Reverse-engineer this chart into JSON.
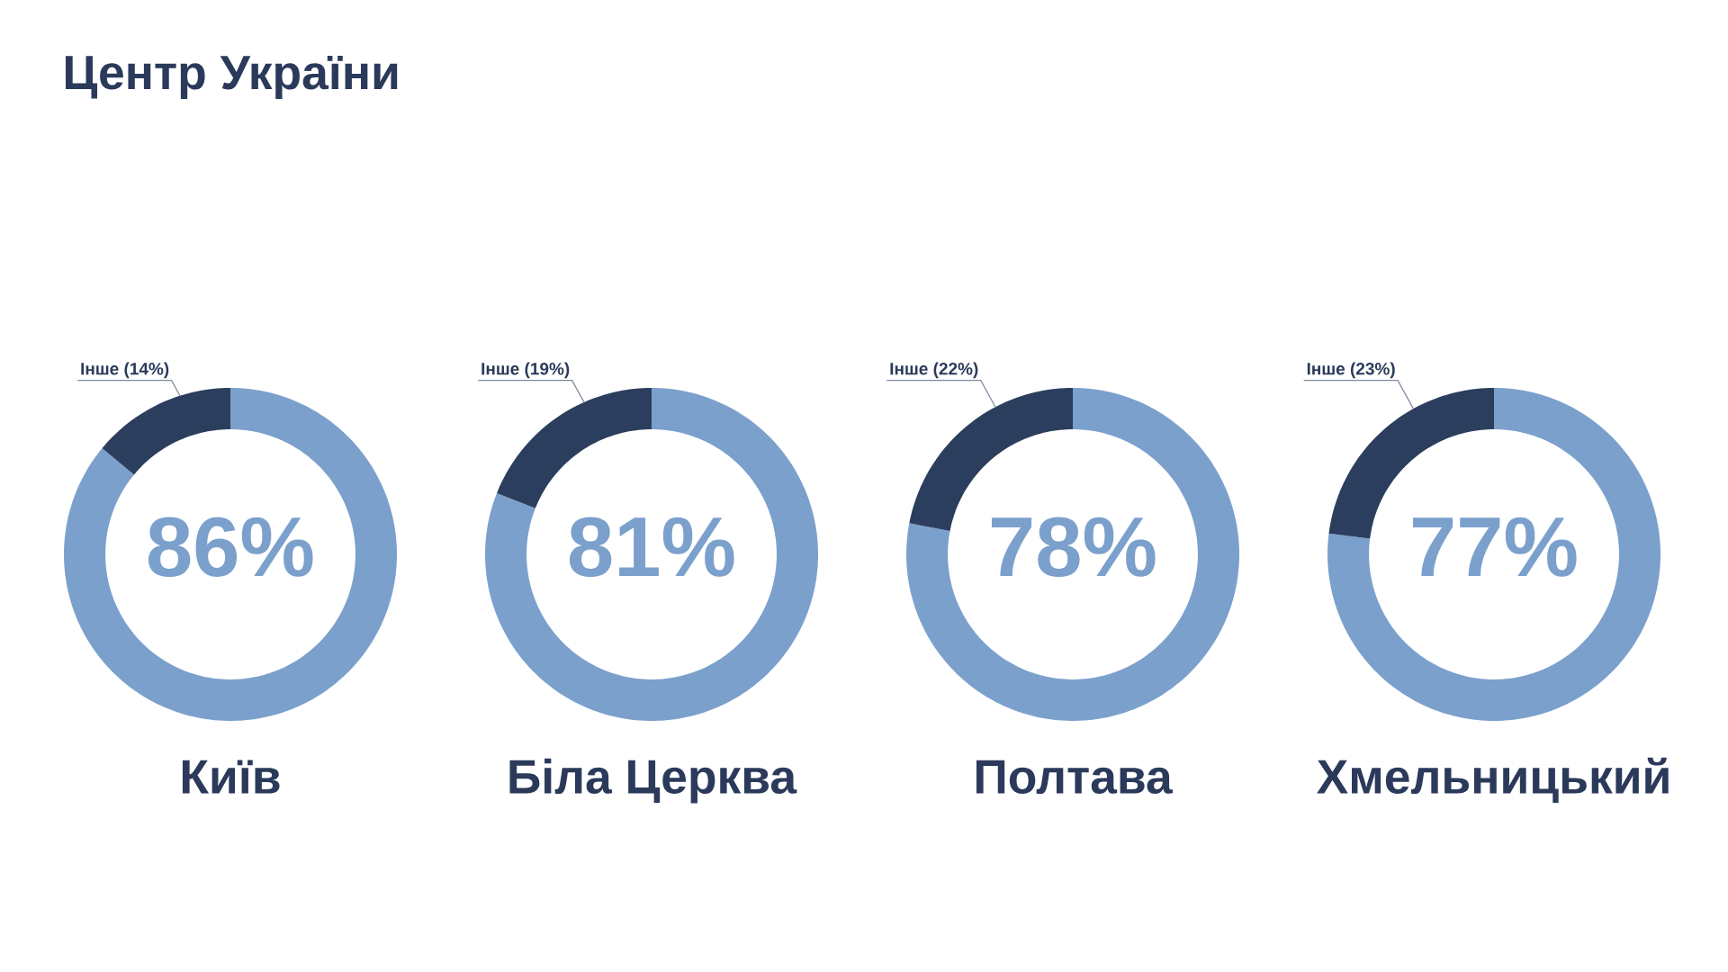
{
  "chart_data": [
    {
      "type": "donut",
      "title": "Київ",
      "categories": [
        null,
        "Інше"
      ],
      "values": [
        86,
        14
      ],
      "colors": [
        "#7ba0cc",
        "#2c3e5e"
      ],
      "value_labels": [
        "86%",
        "(14%)"
      ],
      "annotations": [
        "Центр України"
      ]
    },
    {
      "type": "donut",
      "title": "Біла Церква",
      "categories": [
        null,
        "Інше"
      ],
      "values": [
        81,
        19
      ],
      "colors": [
        "#7ba0cc",
        "#2c3e5e"
      ],
      "value_labels": [
        "81%",
        "(19%)"
      ]
    },
    {
      "type": "donut",
      "title": "Полтава",
      "categories": [
        null,
        "Інше"
      ],
      "values": [
        78,
        22
      ],
      "colors": [
        "#7ba0cc",
        "#2c3e5e"
      ],
      "value_labels": [
        "78%",
        "(22%)"
      ]
    },
    {
      "type": "donut",
      "title": "Хмельницький",
      "categories": [
        null,
        "Інше"
      ],
      "values": [
        77,
        23
      ],
      "colors": [
        "#7ba0cc",
        "#2c3e5e"
      ],
      "value_labels": [
        "77%",
        "(23%)"
      ]
    }
  ]
}
